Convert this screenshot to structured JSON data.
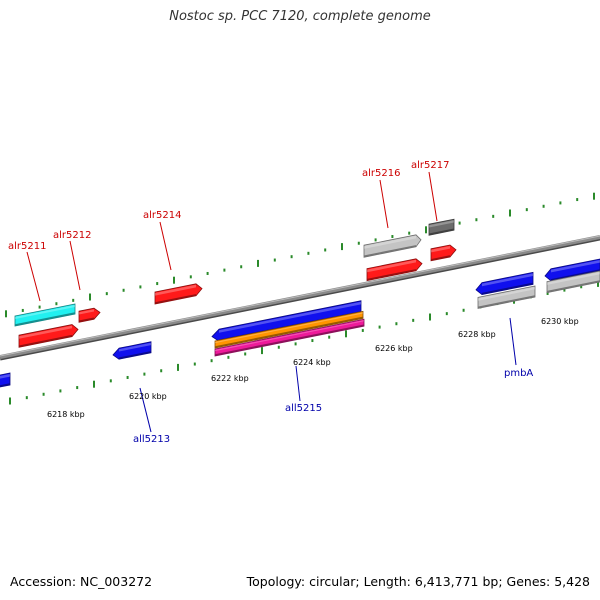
{
  "title": "Nostoc sp. PCC 7120, complete genome",
  "footer": {
    "accession": "Accession: NC_003272",
    "summary": "Topology: circular; Length: 6,413,771 bp; Genes: 5,428"
  },
  "colors": {
    "forward_label": "#cc0000",
    "reverse_label": "#0000aa",
    "backbone": "#8a8a8a",
    "tick": "#2a8a2a",
    "red": "#ff1a1a",
    "blue": "#1010ee",
    "cyan": "#22f0f0",
    "light_gray": "#c4c4c4",
    "dark_gray": "#6c6c6c",
    "orange": "#ff9400",
    "magenta": "#ee1a9a"
  },
  "scale_labels": [
    "6218 kbp",
    "6220 kbp",
    "6222 kbp",
    "6224 kbp",
    "6226 kbp",
    "6228 kbp",
    "6230 kbp"
  ],
  "gene_labels": [
    {
      "name": "alr5211",
      "strand": "forward"
    },
    {
      "name": "alr5212",
      "strand": "forward"
    },
    {
      "name": "alr5214",
      "strand": "forward"
    },
    {
      "name": "alr5216",
      "strand": "forward"
    },
    {
      "name": "alr5217",
      "strand": "forward"
    },
    {
      "name": "all5213",
      "strand": "reverse"
    },
    {
      "name": "all5215",
      "strand": "reverse"
    },
    {
      "name": "pmbA",
      "strand": "reverse"
    }
  ],
  "features": [
    {
      "name": "gene-cyan-upper",
      "color": "cyan",
      "direction": "none"
    },
    {
      "name": "gene-red-alr5211",
      "color": "red",
      "direction": "forward"
    },
    {
      "name": "gene-red-alr5212",
      "color": "red",
      "direction": "forward"
    },
    {
      "name": "gene-red-alr5214",
      "color": "red",
      "direction": "forward"
    },
    {
      "name": "gene-lightgray-alr5216",
      "color": "light_gray",
      "direction": "forward"
    },
    {
      "name": "gene-darkgray-alr5217",
      "color": "dark_gray",
      "direction": "none"
    },
    {
      "name": "gene-red-lower-alr5216",
      "color": "red",
      "direction": "forward"
    },
    {
      "name": "gene-red-lower-alr5217",
      "color": "red",
      "direction": "forward"
    },
    {
      "name": "gene-blue-left-edge",
      "color": "blue",
      "direction": "reverse"
    },
    {
      "name": "gene-blue-all5213",
      "color": "blue",
      "direction": "reverse"
    },
    {
      "name": "gene-blue-all5215",
      "color": "blue",
      "direction": "reverse"
    },
    {
      "name": "gene-orange-all5215",
      "color": "orange",
      "direction": "none"
    },
    {
      "name": "gene-magenta-all5215",
      "color": "magenta",
      "direction": "none"
    },
    {
      "name": "gene-blue-pmbA",
      "color": "blue",
      "direction": "reverse"
    },
    {
      "name": "gene-lightgray-pmbA",
      "color": "light_gray",
      "direction": "none"
    },
    {
      "name": "gene-blue-right-edge",
      "color": "blue",
      "direction": "reverse"
    },
    {
      "name": "gene-lightgray-right-edge",
      "color": "light_gray",
      "direction": "none"
    }
  ]
}
